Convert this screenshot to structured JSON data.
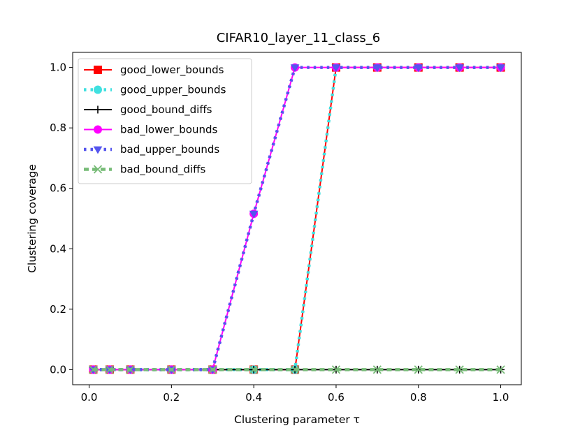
{
  "chart_data": {
    "type": "line",
    "title": "CIFAR10_layer_11_class_6",
    "xlabel": "Clustering parameter τ",
    "ylabel": "Clustering coverage",
    "xlim": [
      -0.04,
      1.05
    ],
    "ylim": [
      -0.05,
      1.05
    ],
    "xticks": [
      0.0,
      0.2,
      0.4,
      0.6,
      0.8,
      1.0
    ],
    "xtick_labels": [
      "0.0",
      "0.2",
      "0.4",
      "0.6",
      "0.8",
      "1.0"
    ],
    "yticks": [
      0.0,
      0.2,
      0.4,
      0.6,
      0.8,
      1.0
    ],
    "ytick_labels": [
      "0.0",
      "0.2",
      "0.4",
      "0.6",
      "0.8",
      "1.0"
    ],
    "grid": false,
    "legend_position": "top-left",
    "x": [
      0.01,
      0.05,
      0.1,
      0.2,
      0.3,
      0.4,
      0.5,
      0.6,
      0.7,
      0.8,
      0.9,
      1.0
    ],
    "series": [
      {
        "name": "good_lower_bounds",
        "color": "#ff0000",
        "linestyle": "solid",
        "marker": "square",
        "values": [
          0,
          0,
          0,
          0,
          0,
          0,
          0,
          1,
          1,
          1,
          1,
          1
        ]
      },
      {
        "name": "good_upper_bounds",
        "color": "#40e0e0",
        "linestyle": "dotted",
        "marker": "circle",
        "values": [
          0,
          0,
          0,
          0,
          0,
          0,
          0,
          1,
          1,
          1,
          1,
          1
        ]
      },
      {
        "name": "good_bound_diffs",
        "color": "#000000",
        "linestyle": "solid",
        "marker": "plus",
        "values": [
          0,
          0,
          0,
          0,
          0,
          0,
          0,
          0,
          0,
          0,
          0,
          0
        ]
      },
      {
        "name": "bad_lower_bounds",
        "color": "#ff00ff",
        "linestyle": "solid",
        "marker": "circle",
        "values": [
          0,
          0,
          0,
          0,
          0,
          0.516,
          1,
          1,
          1,
          1,
          1,
          1
        ]
      },
      {
        "name": "bad_upper_bounds",
        "color": "#5555ee",
        "linestyle": "dotted",
        "marker": "triangle-down",
        "values": [
          0,
          0,
          0,
          0,
          0,
          0.516,
          1,
          1,
          1,
          1,
          1,
          1
        ]
      },
      {
        "name": "bad_bound_diffs",
        "color": "#77bb77",
        "linestyle": "dashed",
        "marker": "x",
        "values": [
          0,
          0,
          0,
          0,
          0,
          0,
          0,
          0,
          0,
          0,
          0,
          0
        ]
      }
    ]
  }
}
